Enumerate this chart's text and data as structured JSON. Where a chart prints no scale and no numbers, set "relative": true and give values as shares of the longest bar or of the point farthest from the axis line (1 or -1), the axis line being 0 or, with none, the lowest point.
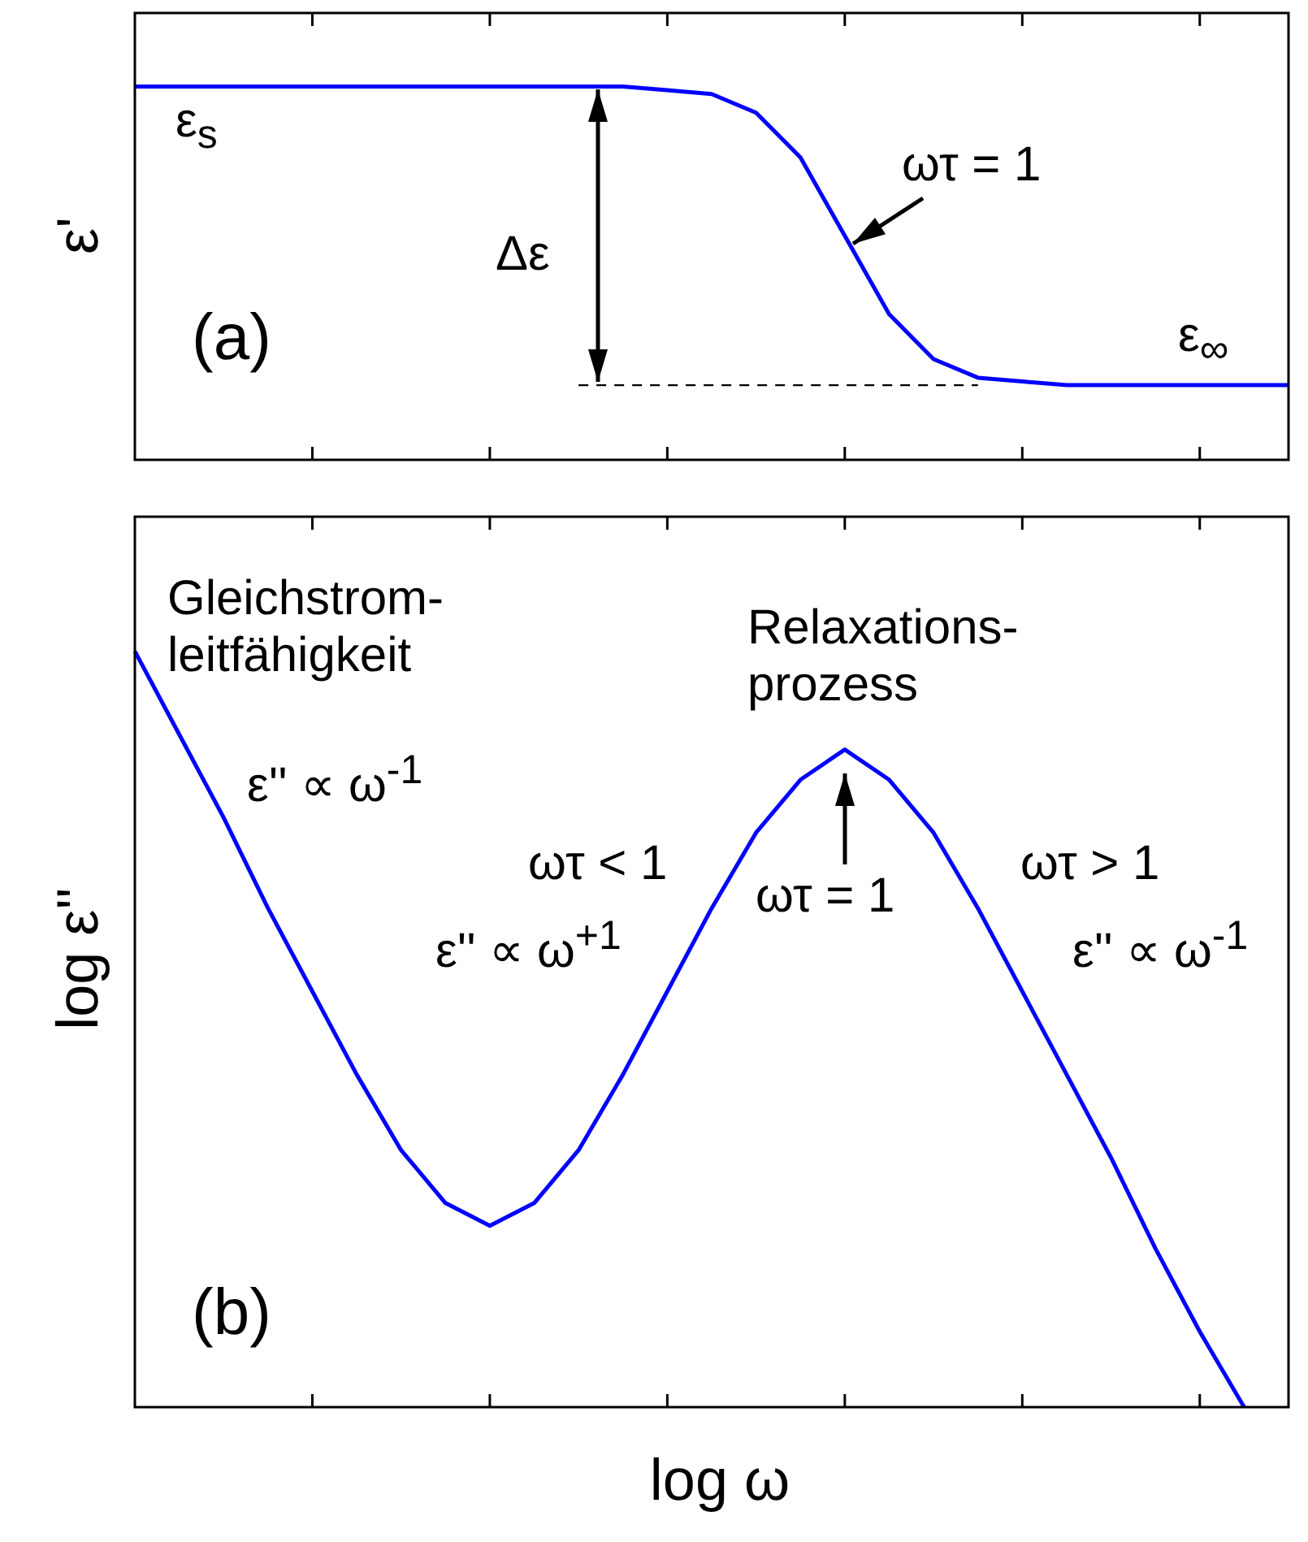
{
  "chart_data": [
    {
      "type": "line",
      "relative": true,
      "ylabel": "ε'",
      "categories": [
        null,
        null,
        null,
        null,
        null,
        null,
        null,
        null,
        null,
        null,
        null,
        null,
        null,
        null,
        null,
        null,
        null,
        null,
        null,
        null,
        null,
        null,
        null,
        null,
        null,
        null,
        null
      ],
      "series": [
        {
          "color": "#0000ff",
          "values": [
            1,
            1,
            1,
            1,
            1,
            1,
            1,
            1,
            1,
            1,
            1,
            1,
            0.99,
            0.98,
            0.93,
            0.81,
            0.6,
            0.39,
            0.27,
            0.22,
            0.21,
            0.2,
            0.2,
            0.2,
            0.2,
            0.2,
            0.2
          ]
        },
        {
          "color": "#000000",
          "line_style": "dashed",
          "values": [
            null,
            null,
            null,
            null,
            null,
            null,
            null,
            null,
            null,
            null,
            0.2,
            0.2,
            0.2,
            0.2,
            0.2,
            0.2,
            0.2,
            0.2,
            0.2,
            0.2,
            null,
            null,
            null,
            null,
            null,
            null,
            null
          ]
        }
      ],
      "annotations": [
        "ε$_{s}$",
        "Δε",
        "ωτ = 1",
        "(a)",
        "ε$_{∞}$"
      ]
    },
    {
      "type": "line",
      "relative": true,
      "ylabel": "log ε''",
      "xlabel": "log ω",
      "categories": [
        null,
        null,
        null,
        null,
        null,
        null,
        null,
        null,
        null,
        null,
        null,
        null,
        null,
        null,
        null,
        null,
        null,
        null,
        null,
        null,
        null,
        null,
        null,
        null,
        null,
        null,
        null
      ],
      "series": [
        {
          "color": "#0000ff",
          "values": [
            1,
            0.89,
            0.78,
            0.66,
            0.55,
            0.44,
            0.34,
            0.27,
            0.24,
            0.27,
            0.34,
            0.44,
            0.55,
            0.66,
            0.76,
            0.83,
            0.87,
            0.83,
            0.76,
            0.66,
            0.55,
            0.44,
            0.33,
            0.21,
            0.1,
            0,
            null
          ]
        }
      ],
      "annotations": [
        "Gleichstrom-\nleitfähigkeit",
        "ε'' ∝ ω$^{-1}$",
        "ωτ < 1",
        "ε'' ∝ ω$^{+1}$",
        "Relaxations-\nprozess",
        "ωτ = 1",
        "ωτ > 1",
        "ε'' ∝ ω$^{-1}$",
        "(b)"
      ]
    }
  ]
}
